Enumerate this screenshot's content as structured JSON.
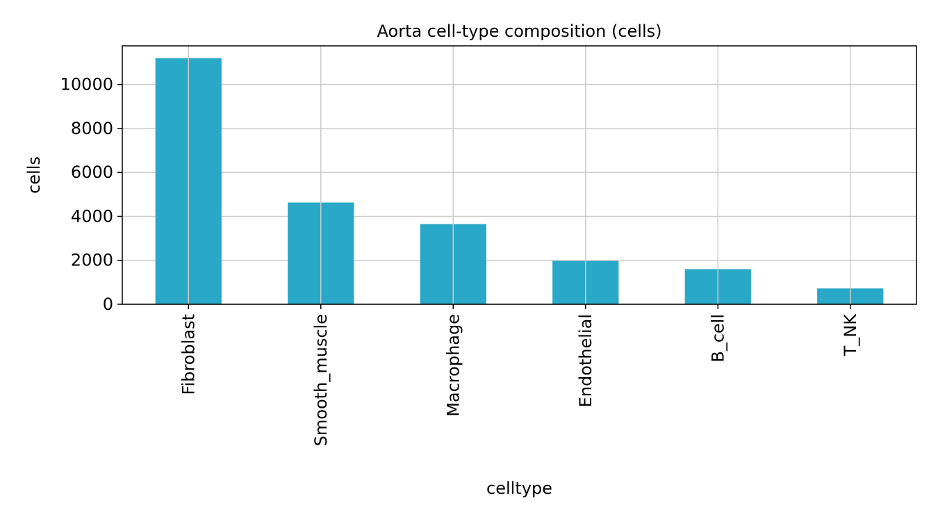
{
  "chart_data": {
    "type": "bar",
    "title": "Aorta cell-type composition (cells)",
    "xlabel": "celltype",
    "ylabel": "cells",
    "categories": [
      "Fibroblast",
      "Smooth_muscle",
      "Macrophage",
      "Endothelial",
      "B_cell",
      "T_NK"
    ],
    "values": [
      11200,
      4630,
      3650,
      1970,
      1600,
      720
    ],
    "ylim": [
      0,
      11760
    ],
    "yticks": [
      "0",
      "2000",
      "4000",
      "6000",
      "8000",
      "10000"
    ],
    "grid": true,
    "bar_color": "#2aa8c8",
    "grid_color": "#cccccc"
  }
}
